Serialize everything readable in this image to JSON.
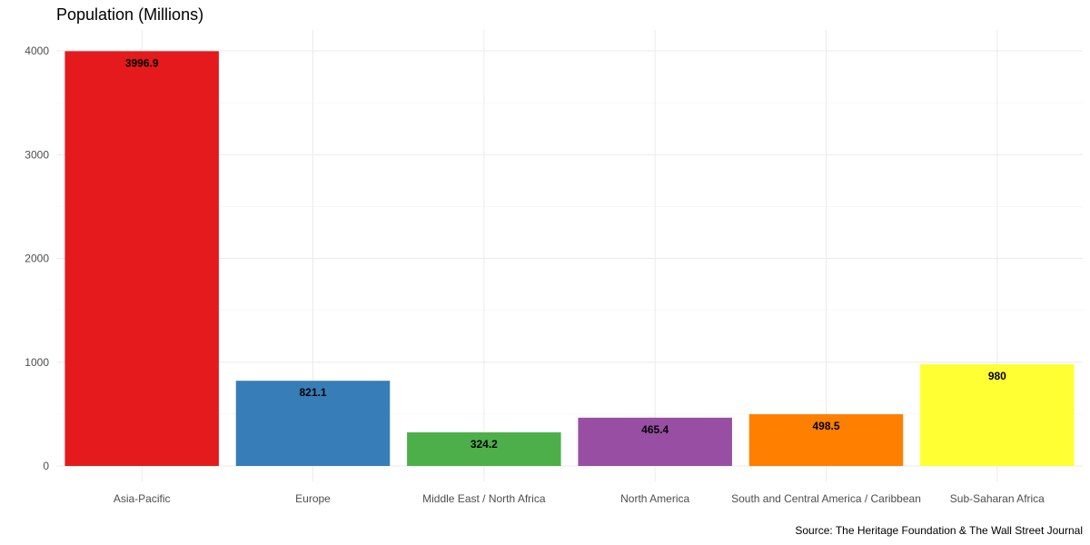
{
  "chart_data": {
    "type": "bar",
    "title": "Population (Millions)",
    "caption": "Source: The Heritage Foundation & The Wall Street Journal",
    "xlabel": "",
    "ylabel": "",
    "categories": [
      "Asia-Pacific",
      "Europe",
      "Middle East / North Africa",
      "North America",
      "South and Central America / Caribbean",
      "Sub-Saharan Africa"
    ],
    "values": [
      3996.9,
      821.1,
      324.2,
      465.4,
      498.5,
      980
    ],
    "value_labels": [
      "3996.9",
      "821.1",
      "324.2",
      "465.4",
      "498.5",
      "980"
    ],
    "colors": [
      "#E41A1C",
      "#377EB8",
      "#4DAF4A",
      "#984EA3",
      "#FF7F00",
      "#FFFF33"
    ],
    "y_ticks": [
      0,
      1000,
      2000,
      3000,
      4000
    ],
    "ylim": [
      0,
      4200
    ],
    "grid": true,
    "legend": "none"
  }
}
